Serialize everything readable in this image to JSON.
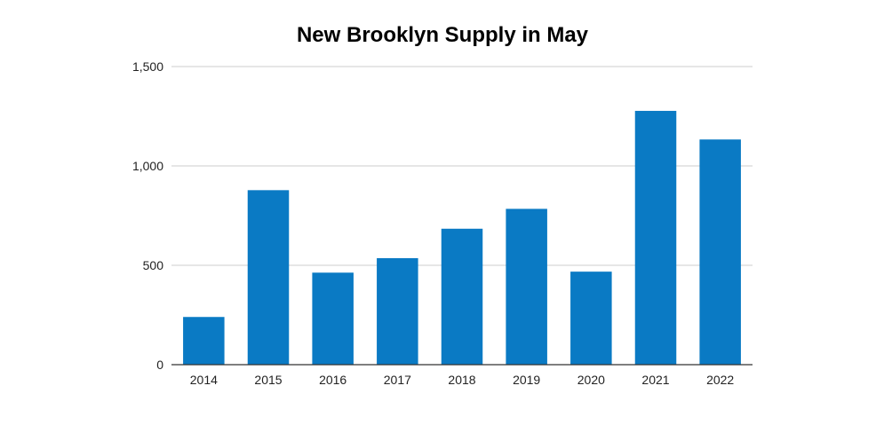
{
  "chart_data": {
    "type": "bar",
    "title": "New Brooklyn Supply in May",
    "xlabel": "",
    "ylabel": "",
    "categories": [
      "2014",
      "2015",
      "2016",
      "2017",
      "2018",
      "2019",
      "2020",
      "2021",
      "2022"
    ],
    "values": [
      240,
      878,
      463,
      536,
      684,
      784,
      468,
      1277,
      1133
    ],
    "ylim": [
      0,
      1500
    ],
    "yticks": [
      0,
      500,
      1000,
      1500
    ],
    "ytick_labels": [
      "0",
      "500",
      "1,000",
      "1,500"
    ],
    "grid": true,
    "legend": "none",
    "bar_color": "#0a7ac4"
  }
}
